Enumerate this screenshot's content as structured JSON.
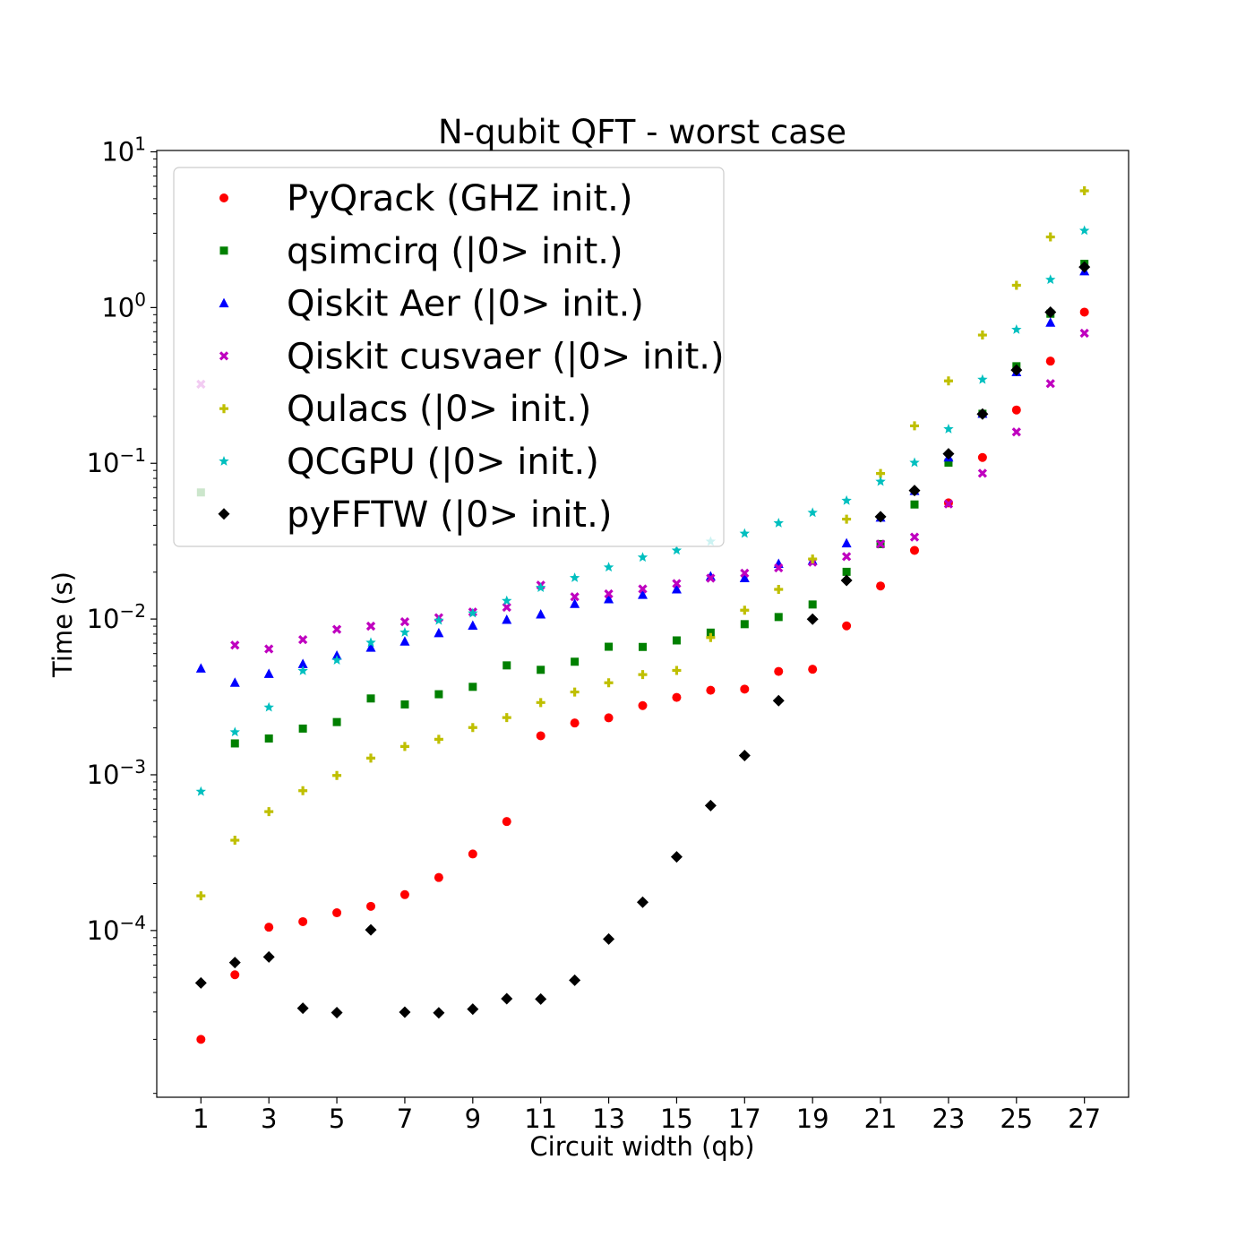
{
  "chart_data": {
    "type": "scatter",
    "title": "N-qubit QFT - worst case",
    "xlabel": "Circuit width (qb)",
    "ylabel": "Time (s)",
    "xscale": "linear",
    "yscale": "log",
    "xlim": [
      -0.3,
      28.3
    ],
    "ylim": [
      8.5e-06,
      10.2
    ],
    "xticks": [
      1,
      3,
      5,
      7,
      9,
      11,
      13,
      15,
      17,
      19,
      21,
      23,
      25,
      27
    ],
    "yticks": [
      {
        "value": 0.0001,
        "base": "10",
        "exp": "−4"
      },
      {
        "value": 0.001,
        "base": "10",
        "exp": "−3"
      },
      {
        "value": 0.01,
        "base": "10",
        "exp": "−2"
      },
      {
        "value": 0.1,
        "base": "10",
        "exp": "−1"
      },
      {
        "value": 1,
        "base": "10",
        "exp": "0"
      },
      {
        "value": 10,
        "base": "10",
        "exp": "1"
      }
    ],
    "grid": false,
    "legend_position": "upper-left",
    "x": [
      1,
      2,
      3,
      4,
      5,
      6,
      7,
      8,
      9,
      10,
      11,
      12,
      13,
      14,
      15,
      16,
      17,
      18,
      19,
      20,
      21,
      22,
      23,
      24,
      25,
      26,
      27
    ],
    "series": [
      {
        "name": "PyQrack (GHZ init.)",
        "color": "#ff0000",
        "marker": "circle",
        "values": [
          2e-05,
          5.2e-05,
          0.000105,
          0.000114,
          0.00013,
          0.000143,
          0.00017,
          0.000219,
          0.00031,
          0.000501,
          0.00178,
          0.00215,
          0.00232,
          0.00278,
          0.00314,
          0.00349,
          0.00355,
          0.00461,
          0.00476,
          0.00904,
          0.0163,
          0.0276,
          0.0557,
          0.109,
          0.22,
          0.453,
          0.935
        ]
      },
      {
        "name": "qsimcirq (|0> init.)",
        "color": "#008000",
        "marker": "square",
        "values": [
          0.065,
          0.00159,
          0.00171,
          0.00198,
          0.00218,
          0.00309,
          0.00283,
          0.00329,
          0.00367,
          0.00504,
          0.00472,
          0.00532,
          0.00664,
          0.00662,
          0.00729,
          0.00818,
          0.00927,
          0.0103,
          0.0124,
          0.0201,
          0.0303,
          0.0544,
          0.101,
          0.208,
          0.42,
          0.913,
          1.91
        ]
      },
      {
        "name": "Qiskit Aer (|0> init.)",
        "color": "#0000ff",
        "marker": "triangle",
        "values": [
          0.00481,
          0.0039,
          0.00444,
          0.00514,
          0.00582,
          0.00654,
          0.00717,
          0.00812,
          0.00907,
          0.00988,
          0.0107,
          0.0125,
          0.0134,
          0.0143,
          0.0155,
          0.0188,
          0.0183,
          0.0226,
          0.0237,
          0.0306,
          0.0448,
          0.0664,
          0.109,
          0.208,
          0.385,
          0.799,
          1.71
        ]
      },
      {
        "name": "Qiskit cusvaer (|0> init.)",
        "color": "#bf00bf",
        "marker": "x",
        "values": [
          0.322,
          0.0068,
          0.00643,
          0.00737,
          0.00858,
          0.009,
          0.00961,
          0.0102,
          0.0111,
          0.0119,
          0.0165,
          0.0139,
          0.0145,
          0.0156,
          0.0169,
          0.0183,
          0.0197,
          0.0213,
          0.0232,
          0.0252,
          0.0303,
          0.0336,
          0.0548,
          0.0863,
          0.159,
          0.325,
          0.684
        ]
      },
      {
        "name": "Qulacs (|0> init.)",
        "color": "#bfbf00",
        "marker": "plus",
        "values": [
          0.000167,
          0.00038,
          0.00058,
          0.00079,
          0.00099,
          0.00128,
          0.00152,
          0.00169,
          0.00201,
          0.00233,
          0.00291,
          0.0034,
          0.0039,
          0.0044,
          0.00468,
          0.00761,
          0.0114,
          0.0155,
          0.0243,
          0.0438,
          0.086,
          0.174,
          0.338,
          0.666,
          1.39,
          2.84,
          5.62
        ]
      },
      {
        "name": "QCGPU (|0> init.)",
        "color": "#00bfbf",
        "marker": "star",
        "values": [
          0.00078,
          0.00188,
          0.00271,
          0.00465,
          0.00544,
          0.00706,
          0.00821,
          0.00979,
          0.0109,
          0.0131,
          0.0159,
          0.0184,
          0.0215,
          0.0249,
          0.0276,
          0.0315,
          0.0354,
          0.0413,
          0.0482,
          0.0576,
          0.0763,
          0.101,
          0.166,
          0.345,
          0.722,
          1.51,
          3.12
        ]
      },
      {
        "name": "pyFFTW (|0> init.)",
        "color": "#000000",
        "marker": "diamond",
        "values": [
          4.61e-05,
          6.23e-05,
          6.76e-05,
          3.17e-05,
          2.97e-05,
          0.000101,
          2.99e-05,
          2.96e-05,
          3.13e-05,
          3.65e-05,
          3.63e-05,
          4.79e-05,
          8.82e-05,
          0.000152,
          0.000297,
          0.000634,
          0.00133,
          0.00299,
          0.00998,
          0.0177,
          0.0454,
          0.0669,
          0.115,
          0.207,
          0.397,
          0.935,
          1.82
        ]
      }
    ]
  }
}
